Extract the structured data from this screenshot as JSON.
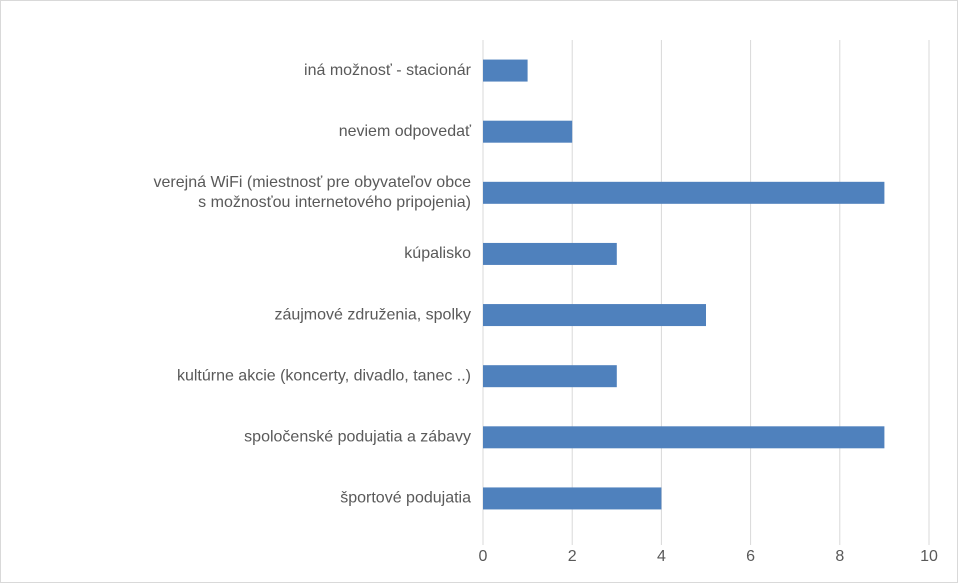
{
  "chart_data": {
    "type": "bar",
    "orientation": "horizontal",
    "categories": [
      "iná možnosť - stacionár",
      "neviem odpovedať",
      "verejná WiFi (miestnosť pre obyvateľov obce\ns možnosťou internetového pripojenia)",
      "kúpalisko",
      "záujmové združenia, spolky",
      "kultúrne akcie (koncerty, divadlo, tanec ..)",
      "spoločenské podujatia a zábavy",
      "športové podujatia"
    ],
    "values": [
      1,
      2,
      9,
      3,
      5,
      3,
      9,
      4
    ],
    "color": "#4f81bd",
    "xlim": [
      0,
      10
    ],
    "xticks": [
      0,
      2,
      4,
      6,
      8,
      10
    ],
    "grid": true
  }
}
